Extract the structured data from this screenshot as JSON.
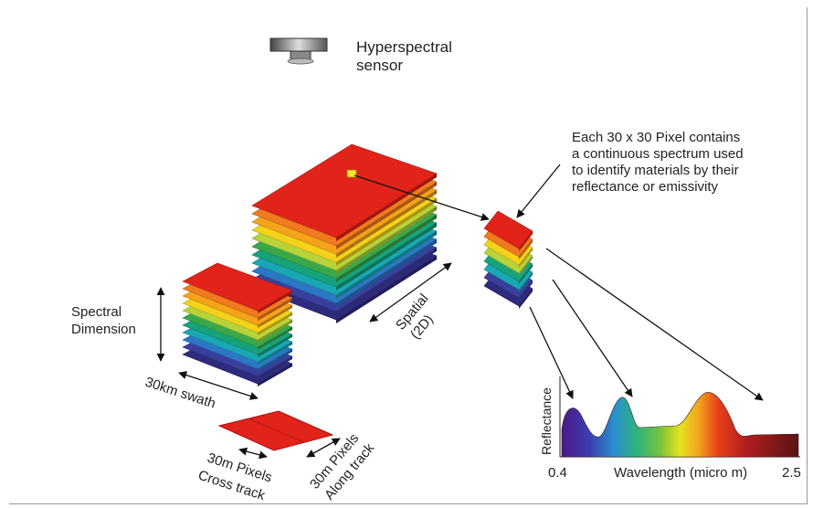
{
  "sensor": {
    "label_line1": "Hyperspectral",
    "label_line2": "sensor"
  },
  "annotation": {
    "line1": "Each 30 x 30 Pixel contains",
    "line2": "a continuous spectrum used",
    "line3": "to identify materials by their",
    "line4": "reflectance or emissivity"
  },
  "labels": {
    "spectral_line1": "Spectral",
    "spectral_line2": "Dimension",
    "swath": "30km swath",
    "spatial_line1": "Spatial",
    "spatial_line2": "(2D)",
    "cross_line1": "30m Pixels",
    "cross_line2": "Cross track",
    "along_line1": "30m Pixels",
    "along_line2": "Along track"
  },
  "spectrum": {
    "ylabel": "Reflectance",
    "xlabel": "Wavelength (micro m)",
    "x_min_label": "0.4",
    "x_max_label": "2.5"
  },
  "colors": {
    "band_colors": [
      "#e2231a",
      "#f07a1e",
      "#f4a31b",
      "#f2d21a",
      "#b6d33a",
      "#39a84a",
      "#16a37c",
      "#1aa7b5",
      "#2b77c4",
      "#3a3f9e",
      "#2e2a7c"
    ]
  }
}
